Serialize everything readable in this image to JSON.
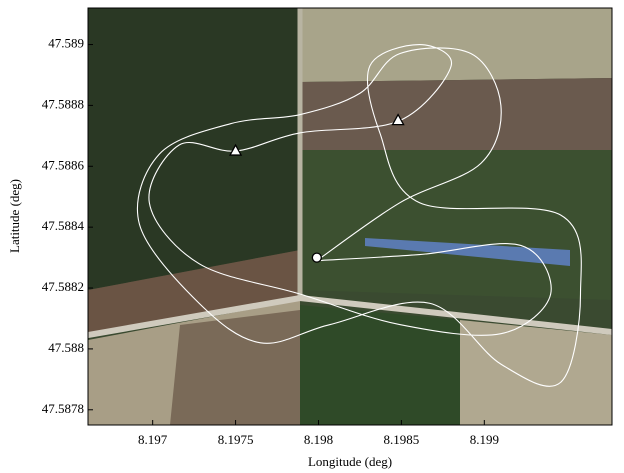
{
  "chart_data": {
    "type": "line",
    "xlabel": "Longitude (deg)",
    "ylabel": "Latitude (deg)",
    "xlim": [
      8.19661,
      8.19977
    ],
    "ylim": [
      47.58775,
      47.58912
    ],
    "xticks": [
      8.197,
      8.1975,
      8.198,
      8.1985,
      8.199
    ],
    "yticks": [
      47.5878,
      47.588,
      47.5882,
      47.5884,
      47.5886,
      47.5888,
      47.589
    ],
    "series": [
      {
        "color": "#ffffff",
        "x": [
          8.19799,
          8.19861,
          8.19922,
          8.1994,
          8.1991,
          8.19849,
          8.19789,
          8.19728,
          8.19698,
          8.19716,
          8.1975,
          8.19789,
          8.19849,
          8.1988,
          8.19861,
          8.19831,
          8.19837,
          8.19861,
          8.19946,
          8.19958,
          8.19946,
          8.1991,
          8.19867,
          8.19807,
          8.19765,
          8.19728,
          8.19692,
          8.19704,
          8.19747,
          8.19789,
          8.19825,
          8.19849,
          8.19892,
          8.1991,
          8.19898,
          8.19849,
          8.19799
        ],
        "y": [
          47.58829,
          47.58831,
          47.58834,
          47.58818,
          47.58805,
          47.58808,
          47.58818,
          47.58828,
          47.58848,
          47.58867,
          47.58865,
          47.58871,
          47.58875,
          47.58893,
          47.589,
          47.58893,
          47.58871,
          47.58848,
          47.58844,
          47.58818,
          47.58789,
          47.58795,
          47.58815,
          47.58808,
          47.58802,
          47.58815,
          47.58841,
          47.58864,
          47.58874,
          47.58877,
          47.58884,
          47.58897,
          47.58897,
          47.5888,
          47.58861,
          47.58848,
          47.58829
        ]
      }
    ],
    "waypoints": {
      "x": [
        8.1975,
        8.19848
      ],
      "y": [
        47.58865,
        47.58875
      ]
    },
    "start": {
      "x": 8.19799,
      "y": 47.5883
    }
  }
}
